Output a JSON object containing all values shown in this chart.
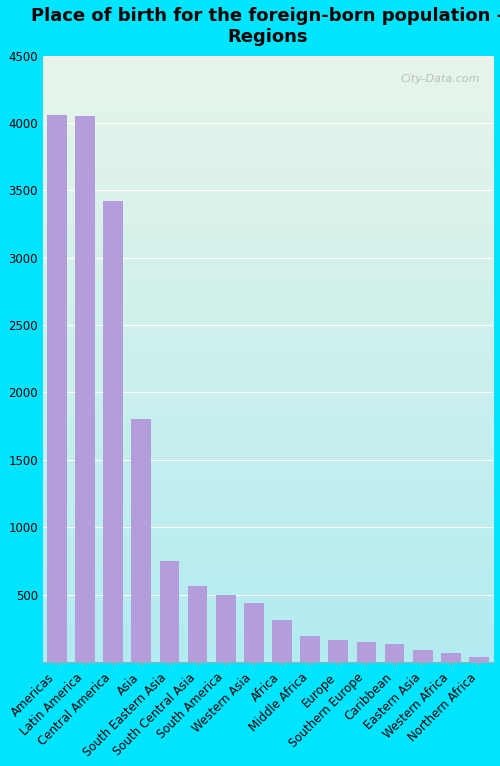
{
  "title": "Place of birth for the foreign-born population -\nRegions",
  "categories": [
    "Americas",
    "Latin America",
    "Central America",
    "Asia",
    "South Eastern Asia",
    "South Central Asia",
    "South America",
    "Western Asia",
    "Africa",
    "Middle Africa",
    "Europe",
    "Southern Europe",
    "Caribbean",
    "Eastern Asia",
    "Western Africa",
    "Northern Africa"
  ],
  "values": [
    4060,
    4050,
    3420,
    1800,
    750,
    565,
    500,
    435,
    310,
    195,
    160,
    145,
    130,
    90,
    65,
    35
  ],
  "bar_color": "#b39ddb",
  "fig_facecolor": "#00e5ff",
  "plot_bg_top": "#e8f5e9",
  "plot_bg_bottom": "#b2ebf2",
  "ylim": [
    0,
    4500
  ],
  "yticks": [
    0,
    500,
    1000,
    1500,
    2000,
    2500,
    3000,
    3500,
    4000,
    4500
  ],
  "watermark": "City-Data.com",
  "title_fontsize": 13,
  "tick_fontsize": 8.5
}
